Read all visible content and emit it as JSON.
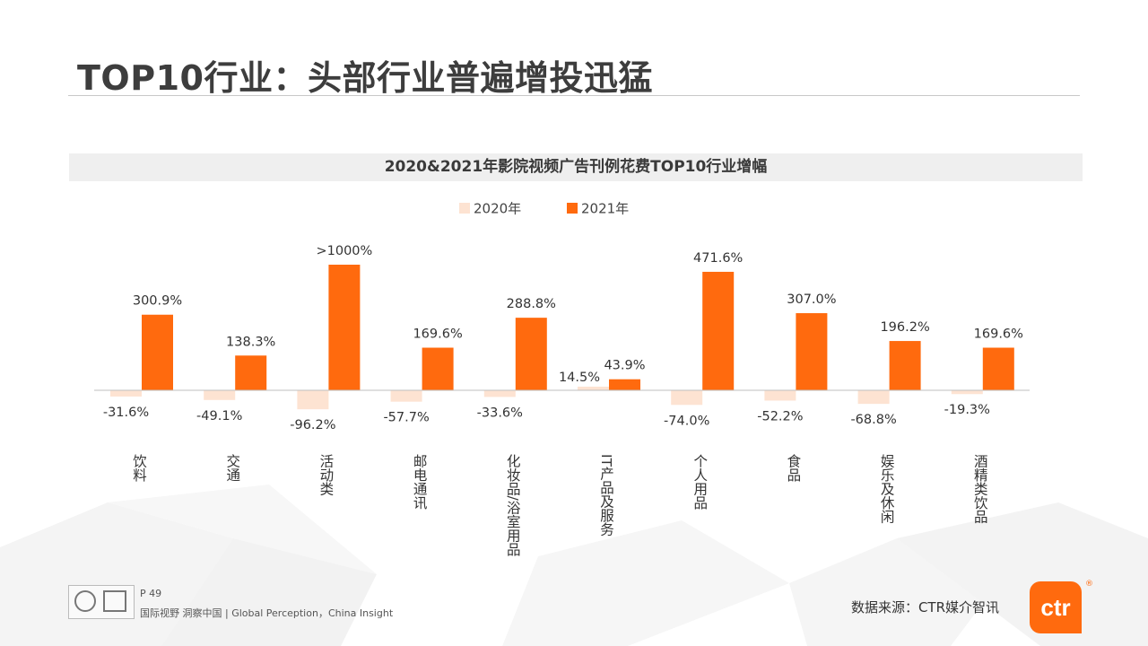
{
  "page_title": "TOP10行业：头部行业普遍增投迅猛",
  "footer": {
    "page_number": "P 49",
    "tagline": "国际视野  洞察中国 |  Global Perception，China Insight",
    "source": "数据来源：CTR媒介智讯",
    "logo_text": "ctr",
    "logo_mark": "®"
  },
  "colors": {
    "series_2020": "#fde3d2",
    "series_2021": "#ff6a0e",
    "axis": "#bfbfbf"
  },
  "chart_data": {
    "type": "bar",
    "title": "2020&2021年影院视频广告刊例花费TOP10行业增幅",
    "legend_position": "top-center",
    "categories": [
      "饮料",
      "交通",
      "活动类",
      "邮电通讯",
      "化妆品/浴室用品",
      "IT产品及服务",
      "个人用品",
      "食品",
      "娱乐及休闲",
      "酒精类饮品"
    ],
    "series": [
      {
        "name": "2020年",
        "values": [
          -31.6,
          -49.1,
          -96.2,
          -57.7,
          -33.6,
          14.5,
          -74.0,
          -52.2,
          -68.8,
          -19.3
        ],
        "labels": [
          "-31.6%",
          "-49.1%",
          "-96.2%",
          "-57.7%",
          "-33.6%",
          "14.5%",
          "-74.0%",
          "-52.2%",
          "-68.8%",
          "-19.3%"
        ]
      },
      {
        "name": "2021年",
        "values": [
          300.9,
          138.3,
          1000,
          169.6,
          288.8,
          43.9,
          471.6,
          307.0,
          196.2,
          169.6
        ],
        "labels": [
          "300.9%",
          "138.3%",
          ">1000%",
          "169.6%",
          "288.8%",
          "43.9%",
          "471.6%",
          "307.0%",
          "196.2%",
          "169.6%"
        ]
      }
    ],
    "unit": "%"
  }
}
